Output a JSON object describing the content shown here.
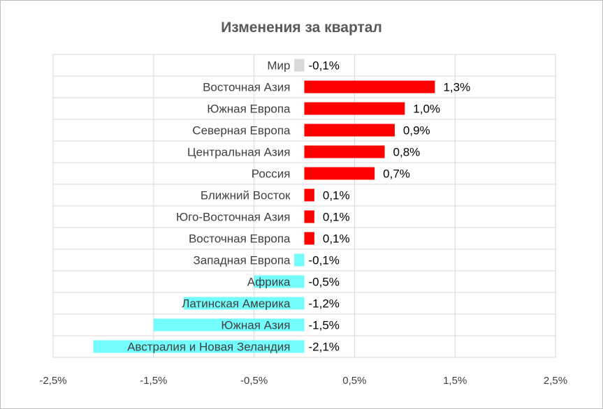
{
  "chart_data": {
    "type": "bar",
    "orientation": "horizontal",
    "title": "Изменения за квартал",
    "xlabel": "",
    "ylabel": "",
    "xlim": [
      -2.5,
      2.5
    ],
    "grid": true,
    "legend": "none",
    "ticks": [
      "-2,5%",
      "-1,5%",
      "-0,5%",
      "0,5%",
      "1,5%",
      "2,5%"
    ],
    "tick_values": [
      -2.5,
      -1.5,
      -0.5,
      0.5,
      1.5,
      2.5
    ],
    "categories": [
      "Мир",
      "Восточная Азия",
      "Южная Европа",
      "Северная Европа",
      "Центральная Азия",
      "Россия",
      "Ближний Восток",
      "Юго-Восточная Азия",
      "Восточная Европа",
      "Западная Европа",
      "Африка",
      "Латинская Америка",
      "Южная Азия",
      "Австралия и Новая Зеландия"
    ],
    "values": [
      -0.1,
      1.3,
      1.0,
      0.9,
      0.8,
      0.7,
      0.1,
      0.1,
      0.1,
      -0.1,
      -0.5,
      -1.2,
      -1.5,
      -2.1
    ],
    "labels": [
      "-0,1%",
      "1,3%",
      "1,0%",
      "0,9%",
      "0,8%",
      "0,7%",
      "0,1%",
      "0,1%",
      "0,1%",
      "-0,1%",
      "-0,5%",
      "-1,2%",
      "-1,5%",
      "-2,1%"
    ],
    "colors": {
      "positive": "#ff0000",
      "negative": "#72fcfc",
      "world": "#d9d9d9",
      "grid": "#d9d9d9"
    }
  }
}
